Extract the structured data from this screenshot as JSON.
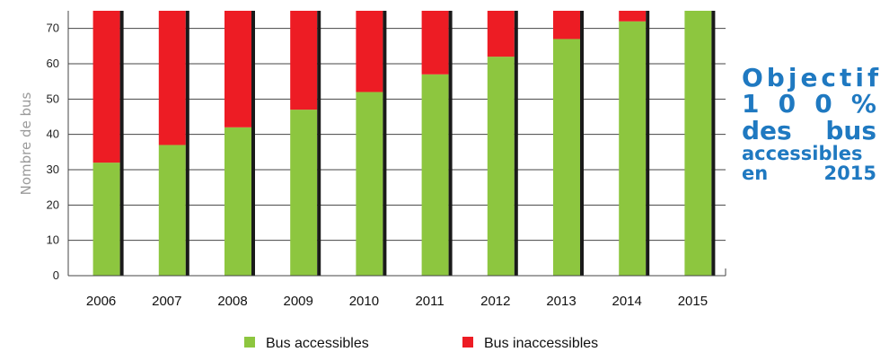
{
  "chart_data": {
    "type": "bar",
    "stacked": true,
    "categories": [
      "2006",
      "2007",
      "2008",
      "2009",
      "2010",
      "2011",
      "2012",
      "2013",
      "2014",
      "2015"
    ],
    "series": [
      {
        "name": "Bus accessibles",
        "color": "#8dc63f",
        "values": [
          32,
          37,
          42,
          47,
          52,
          57,
          62,
          67,
          72,
          75
        ]
      },
      {
        "name": "Bus inaccessibles",
        "color": "#ed1c24",
        "values": [
          43,
          38,
          33,
          28,
          23,
          18,
          13,
          8,
          3,
          0
        ]
      }
    ],
    "ylabel": "Nombre de bus",
    "xlabel": "",
    "ylim": [
      0,
      75
    ],
    "yticks": [
      0,
      10,
      20,
      30,
      40,
      50,
      60,
      70
    ],
    "grid": true,
    "legend": "bottom"
  },
  "annotation": {
    "line1": [
      "Objectif"
    ],
    "line2": [
      "1",
      "0",
      "0",
      "%"
    ],
    "line3": [
      "des",
      "bus"
    ],
    "line4": [
      "accessibles"
    ],
    "line5": [
      "en",
      "2015"
    ]
  }
}
